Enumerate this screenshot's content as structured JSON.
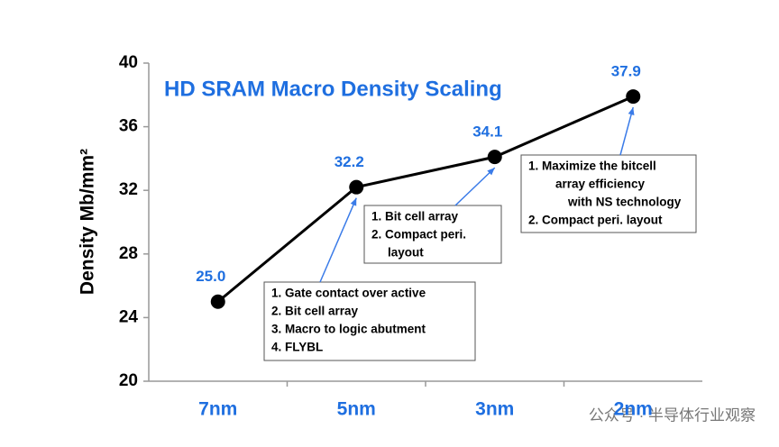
{
  "chart_data": {
    "type": "line",
    "title": "HD SRAM Macro Density Scaling",
    "y_label": "Density Mb/mm²",
    "categories": [
      "7nm",
      "5nm",
      "3nm",
      "2nm"
    ],
    "values": [
      25.0,
      32.2,
      34.1,
      37.9
    ],
    "value_labels": [
      "25.0",
      "32.2",
      "34.1",
      "37.9"
    ],
    "color": "#000000",
    "label_color": "#1f6fe0",
    "ylim": [
      20,
      40
    ],
    "yticks": [
      20,
      24,
      28,
      32,
      36,
      40
    ],
    "grid": false,
    "annotations": [
      {
        "lines": [
          "1. Gate contact over active",
          "2. Bit cell array",
          "3. Macro to logic abutment",
          "4. FLYBL"
        ]
      },
      {
        "lines": [
          "1. Bit cell array",
          "2. Compact peri.",
          "layout"
        ]
      },
      {
        "lines": [
          "1. Maximize the bitcell",
          "array efficiency",
          "with NS technology",
          "2. Compact peri. layout"
        ]
      }
    ]
  },
  "watermark": "公众号 · 半导体行业观察"
}
